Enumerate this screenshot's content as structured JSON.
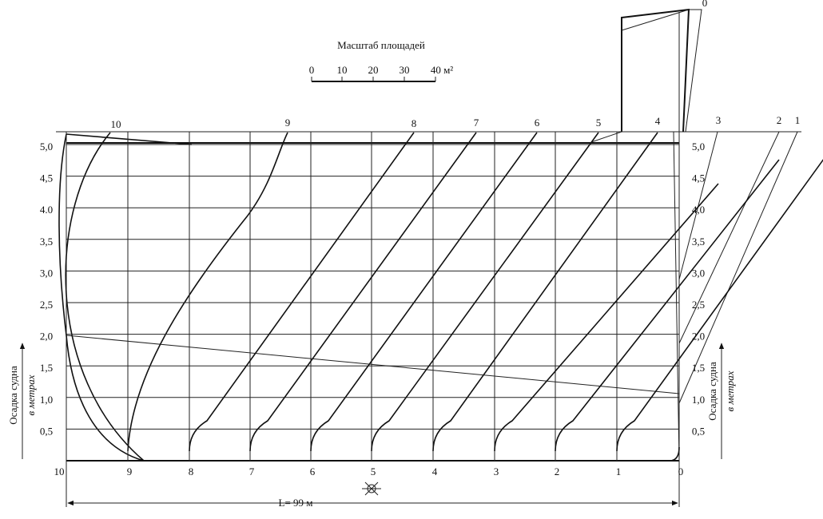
{
  "scale": {
    "title": "Масштаб площадей",
    "ticks": [
      "0",
      "10",
      "20",
      "30",
      "40 м²"
    ]
  },
  "top_stations": [
    "10",
    "9",
    "8",
    "7",
    "6",
    "5",
    "4",
    "3",
    "2",
    "1",
    "0"
  ],
  "bottom_stations": [
    "10",
    "9",
    "8",
    "7",
    "6",
    "5",
    "4",
    "3",
    "2",
    "1",
    "0"
  ],
  "left_axis": [
    "5,0",
    "4,5",
    "4.0",
    "3,5",
    "3,0",
    "2,5",
    "2,0",
    "1,5",
    "1,0",
    "0,5"
  ],
  "right_axis": [
    "5,0",
    "4,5",
    "4,0",
    "3,5",
    "3,0",
    "2,5",
    "2,0",
    "1,5",
    "1,0",
    "0,5"
  ],
  "axis_title": {
    "line1": "Осадка судна",
    "line2": "в метрах"
  },
  "length_label": "L= 99 м"
}
